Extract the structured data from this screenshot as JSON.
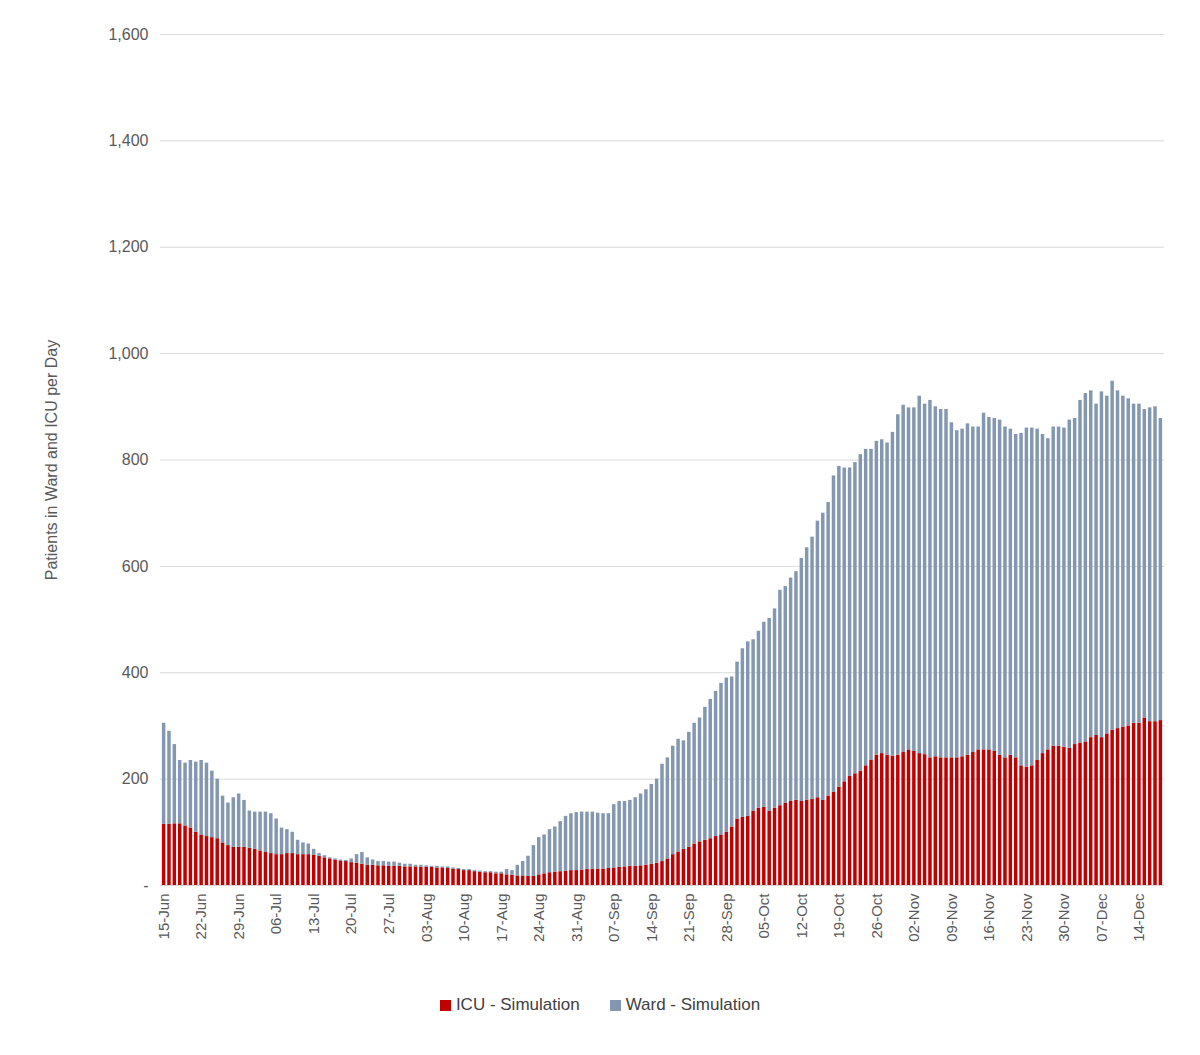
{
  "chart_data": {
    "type": "bar",
    "stacked": true,
    "grid": true,
    "legend": "bottom",
    "y_label": "Patients in Ward and ICU per Day",
    "ylim": [
      0,
      1600
    ],
    "yticks": [
      {
        "value": 0,
        "label": "-"
      },
      200,
      400,
      600,
      800,
      {
        "value": 1000,
        "label": "1,000"
      },
      {
        "value": 1200,
        "label": "1,200"
      },
      {
        "value": 1400,
        "label": "1,400"
      },
      {
        "value": 1600,
        "label": "1,600"
      }
    ],
    "categories": [
      "15-Jun",
      null,
      null,
      null,
      null,
      null,
      null,
      "22-Jun",
      null,
      null,
      null,
      null,
      null,
      null,
      "29-Jun",
      null,
      null,
      null,
      null,
      null,
      null,
      "06-Jul",
      null,
      null,
      null,
      null,
      null,
      null,
      "13-Jul",
      null,
      null,
      null,
      null,
      null,
      null,
      "20-Jul",
      null,
      null,
      null,
      null,
      null,
      null,
      "27-Jul",
      null,
      null,
      null,
      null,
      null,
      null,
      "03-Aug",
      null,
      null,
      null,
      null,
      null,
      null,
      "10-Aug",
      null,
      null,
      null,
      null,
      null,
      null,
      "17-Aug",
      null,
      null,
      null,
      null,
      null,
      null,
      "24-Aug",
      null,
      null,
      null,
      null,
      null,
      null,
      "31-Aug",
      null,
      null,
      null,
      null,
      null,
      null,
      "07-Sep",
      null,
      null,
      null,
      null,
      null,
      null,
      "14-Sep",
      null,
      null,
      null,
      null,
      null,
      null,
      "21-Sep",
      null,
      null,
      null,
      null,
      null,
      null,
      "28-Sep",
      null,
      null,
      null,
      null,
      null,
      null,
      "05-Oct",
      null,
      null,
      null,
      null,
      null,
      null,
      "12-Oct",
      null,
      null,
      null,
      null,
      null,
      null,
      "19-Oct",
      null,
      null,
      null,
      null,
      null,
      null,
      "26-Oct",
      null,
      null,
      null,
      null,
      null,
      null,
      "02-Nov",
      null,
      null,
      null,
      null,
      null,
      null,
      "09-Nov",
      null,
      null,
      null,
      null,
      null,
      null,
      "16-Nov",
      null,
      null,
      null,
      null,
      null,
      null,
      "23-Nov",
      null,
      null,
      null,
      null,
      null,
      null,
      "30-Nov",
      null,
      null,
      null,
      null,
      null,
      null,
      "07-Dec",
      null,
      null,
      null,
      null,
      null,
      null,
      "14-Dec",
      null,
      null,
      null,
      null
    ],
    "series": [
      {
        "name": "ICU - Simulation",
        "color": "#c00000",
        "values": [
          115,
          115,
          116,
          116,
          112,
          108,
          100,
          95,
          92,
          90,
          88,
          80,
          75,
          72,
          72,
          72,
          70,
          68,
          65,
          62,
          60,
          58,
          58,
          60,
          60,
          58,
          58,
          58,
          57,
          55,
          52,
          50,
          48,
          46,
          45,
          43,
          42,
          40,
          38,
          38,
          37,
          37,
          36,
          36,
          36,
          35,
          35,
          35,
          34,
          34,
          34,
          33,
          33,
          32,
          31,
          30,
          28,
          28,
          26,
          25,
          24,
          24,
          22,
          22,
          20,
          19,
          18,
          18,
          17,
          17,
          20,
          22,
          24,
          25,
          26,
          27,
          28,
          28,
          29,
          30,
          30,
          31,
          31,
          32,
          33,
          34,
          35,
          36,
          36,
          37,
          38,
          40,
          42,
          45,
          50,
          58,
          63,
          68,
          72,
          78,
          82,
          85,
          88,
          92,
          95,
          100,
          110,
          125,
          128,
          130,
          140,
          145,
          147,
          140,
          145,
          150,
          155,
          158,
          160,
          158,
          160,
          162,
          165,
          160,
          168,
          175,
          185,
          195,
          205,
          210,
          215,
          225,
          235,
          245,
          248,
          245,
          243,
          245,
          250,
          255,
          252,
          248,
          246,
          240,
          242,
          240,
          240,
          240,
          240,
          242,
          245,
          250,
          255,
          255,
          255,
          252,
          245,
          240,
          245,
          240,
          225,
          222,
          225,
          235,
          248,
          255,
          262,
          262,
          260,
          258,
          265,
          268,
          270,
          278,
          282,
          278,
          285,
          292,
          295,
          298,
          300,
          305,
          305,
          315,
          308,
          308,
          310
        ]
      },
      {
        "name": "Ward - Simulation",
        "color": "#8497b0",
        "values": [
          190,
          175,
          149,
          119,
          118,
          127,
          132,
          140,
          138,
          125,
          112,
          88,
          80,
          93,
          100,
          88,
          70,
          70,
          73,
          76,
          75,
          67,
          50,
          45,
          40,
          27,
          22,
          20,
          11,
          5,
          4,
          2,
          2,
          2,
          2,
          7,
          16,
          22,
          14,
          10,
          8,
          8,
          8,
          8,
          6,
          5,
          5,
          3,
          4,
          3,
          2,
          3,
          2,
          3,
          2,
          2,
          2,
          2,
          2,
          2,
          2,
          2,
          3,
          3,
          10,
          9,
          20,
          27,
          38,
          58,
          70,
          73,
          81,
          85,
          94,
          103,
          107,
          109,
          109,
          108,
          108,
          105,
          104,
          103,
          119,
          124,
          123,
          124,
          129,
          135,
          142,
          150,
          158,
          183,
          190,
          204,
          212,
          204,
          216,
          227,
          233,
          250,
          262,
          273,
          285,
          290,
          282,
          295,
          317,
          328,
          322,
          333,
          348,
          362,
          375,
          405,
          407,
          420,
          430,
          457,
          475,
          493,
          520,
          540,
          552,
          595,
          603,
          590,
          580,
          585,
          595,
          595,
          585,
          590,
          590,
          587,
          609,
          640,
          653,
          643,
          646,
          672,
          659,
          672,
          658,
          655,
          655,
          630,
          615,
          616,
          623,
          612,
          607,
          633,
          625,
          626,
          630,
          622,
          613,
          608,
          625,
          638,
          635,
          623,
          600,
          585,
          600,
          600,
          600,
          617,
          613,
          644,
          655,
          652,
          623,
          650,
          635,
          656,
          635,
          622,
          615,
          600,
          600,
          580,
          590,
          592,
          568
        ]
      }
    ]
  }
}
